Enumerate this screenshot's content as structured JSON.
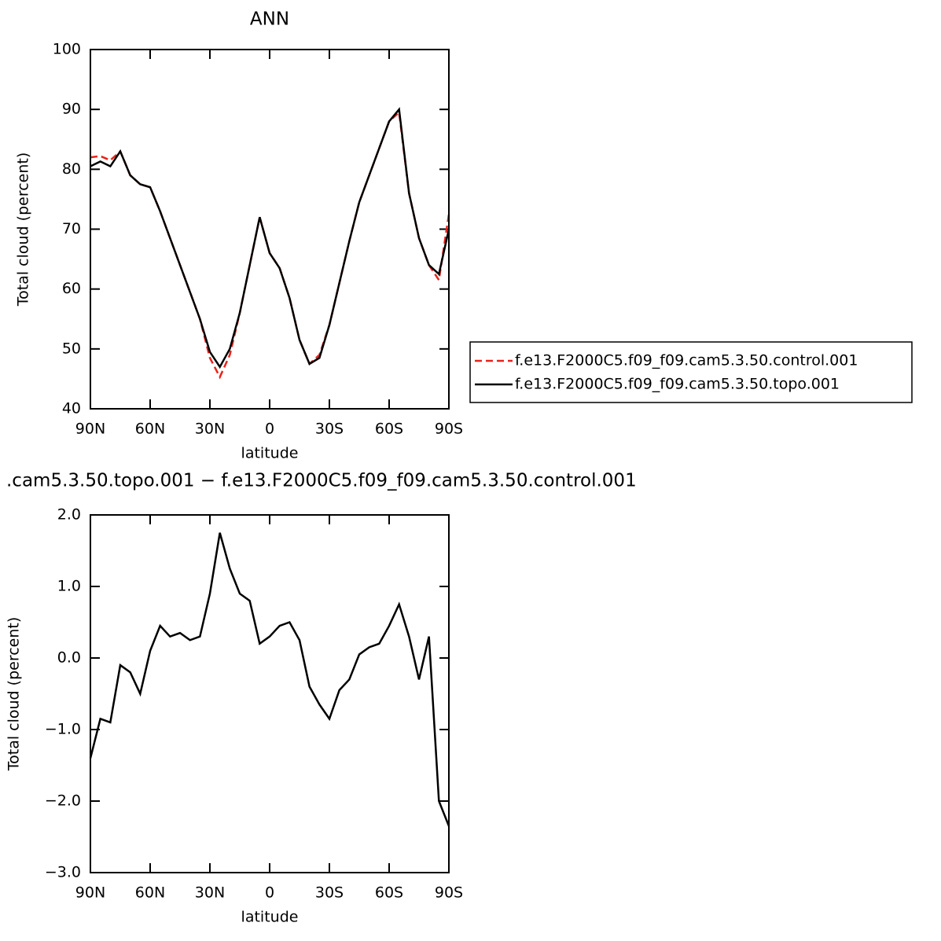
{
  "chart_data": [
    {
      "type": "line",
      "title": "ANN",
      "xlabel": "latitude",
      "ylabel": "Total cloud (percent)",
      "x": [
        90,
        85,
        80,
        75,
        70,
        65,
        60,
        55,
        50,
        45,
        40,
        35,
        30,
        25,
        20,
        15,
        10,
        5,
        0,
        -5,
        -10,
        -15,
        -20,
        -25,
        -30,
        -35,
        -40,
        -45,
        -50,
        -55,
        -60,
        -65,
        -70,
        -75,
        -80,
        -85,
        -90
      ],
      "series": [
        {
          "name": "f.e13.F2000C5.f09_f09.cam5.3.50.control.001",
          "color": "#e8231c",
          "linestyle": "dashed",
          "values": [
            82,
            82.2,
            81.5,
            83,
            79,
            77.5,
            77,
            73,
            68.5,
            64,
            59.5,
            55,
            48.5,
            45.3,
            49,
            56,
            64,
            72,
            66,
            63.5,
            58.5,
            51.5,
            47.5,
            49,
            54,
            61,
            68,
            74.5,
            79,
            83.5,
            88,
            89.5,
            76,
            68.5,
            64,
            61.5,
            72.5
          ]
        },
        {
          "name": "f.e13.F2000C5.f09_f09.cam5.3.50.topo.001",
          "color": "#000000",
          "linestyle": "solid",
          "values": [
            80.5,
            81.3,
            80.5,
            83,
            79,
            77.5,
            77,
            73,
            68.5,
            64,
            59.5,
            55,
            49.5,
            47,
            50,
            56,
            64,
            72,
            66,
            63.5,
            58.5,
            51.5,
            47.5,
            48.5,
            54,
            61,
            68,
            74.5,
            79,
            83.5,
            88,
            90,
            76,
            68.5,
            64,
            62.5,
            70
          ]
        }
      ],
      "xlim": [
        90,
        -90
      ],
      "xticks": [
        {
          "value": 90,
          "label": "90N"
        },
        {
          "value": 60,
          "label": "60N"
        },
        {
          "value": 30,
          "label": "30N"
        },
        0,
        {
          "value": -30,
          "label": "30S"
        },
        {
          "value": -60,
          "label": "60S"
        },
        {
          "value": -90,
          "label": "90S"
        }
      ],
      "ylim": [
        40,
        100
      ],
      "yticks": [
        40,
        50,
        60,
        70,
        80,
        90,
        100
      ],
      "legend": "right"
    },
    {
      "type": "line",
      "title": ".cam5.3.50.topo.001 − f.e13.F2000C5.f09_f09.cam5.3.50.control.001",
      "xlabel": "latitude",
      "ylabel": "Total cloud (percent)",
      "x": [
        90,
        85,
        80,
        75,
        70,
        65,
        60,
        55,
        50,
        45,
        40,
        35,
        30,
        25,
        20,
        15,
        10,
        5,
        0,
        -5,
        -10,
        -15,
        -20,
        -25,
        -30,
        -35,
        -40,
        -45,
        -50,
        -55,
        -60,
        -65,
        -70,
        -75,
        -80,
        -85,
        -90
      ],
      "values": [
        -1.4,
        -0.85,
        -0.9,
        -0.1,
        -0.2,
        -0.5,
        0.1,
        0.45,
        0.3,
        0.35,
        0.25,
        0.3,
        0.9,
        1.75,
        1.25,
        0.9,
        0.8,
        0.2,
        0.3,
        0.45,
        0.5,
        0.25,
        -0.4,
        -0.65,
        -0.85,
        -0.45,
        -0.3,
        0.05,
        0.15,
        0.2,
        0.45,
        0.75,
        0.3,
        -0.3,
        0.3,
        -2.0,
        -2.35
      ],
      "color": "#000000",
      "xlim": [
        90,
        -90
      ],
      "xticks": [
        {
          "value": 90,
          "label": "90N"
        },
        {
          "value": 60,
          "label": "60N"
        },
        {
          "value": 30,
          "label": "30N"
        },
        0,
        {
          "value": -30,
          "label": "30S"
        },
        {
          "value": -60,
          "label": "60S"
        },
        {
          "value": -90,
          "label": "90S"
        }
      ],
      "ylim": [
        -3,
        2
      ],
      "yticks": [
        {
          "value": -3,
          "label": "−3.0"
        },
        {
          "value": -2,
          "label": "−2.0"
        },
        {
          "value": -1,
          "label": "−1.0"
        },
        {
          "value": 0,
          "label": "0.0"
        },
        {
          "value": 1,
          "label": "1.0"
        },
        {
          "value": 2,
          "label": "2.0"
        }
      ]
    }
  ]
}
